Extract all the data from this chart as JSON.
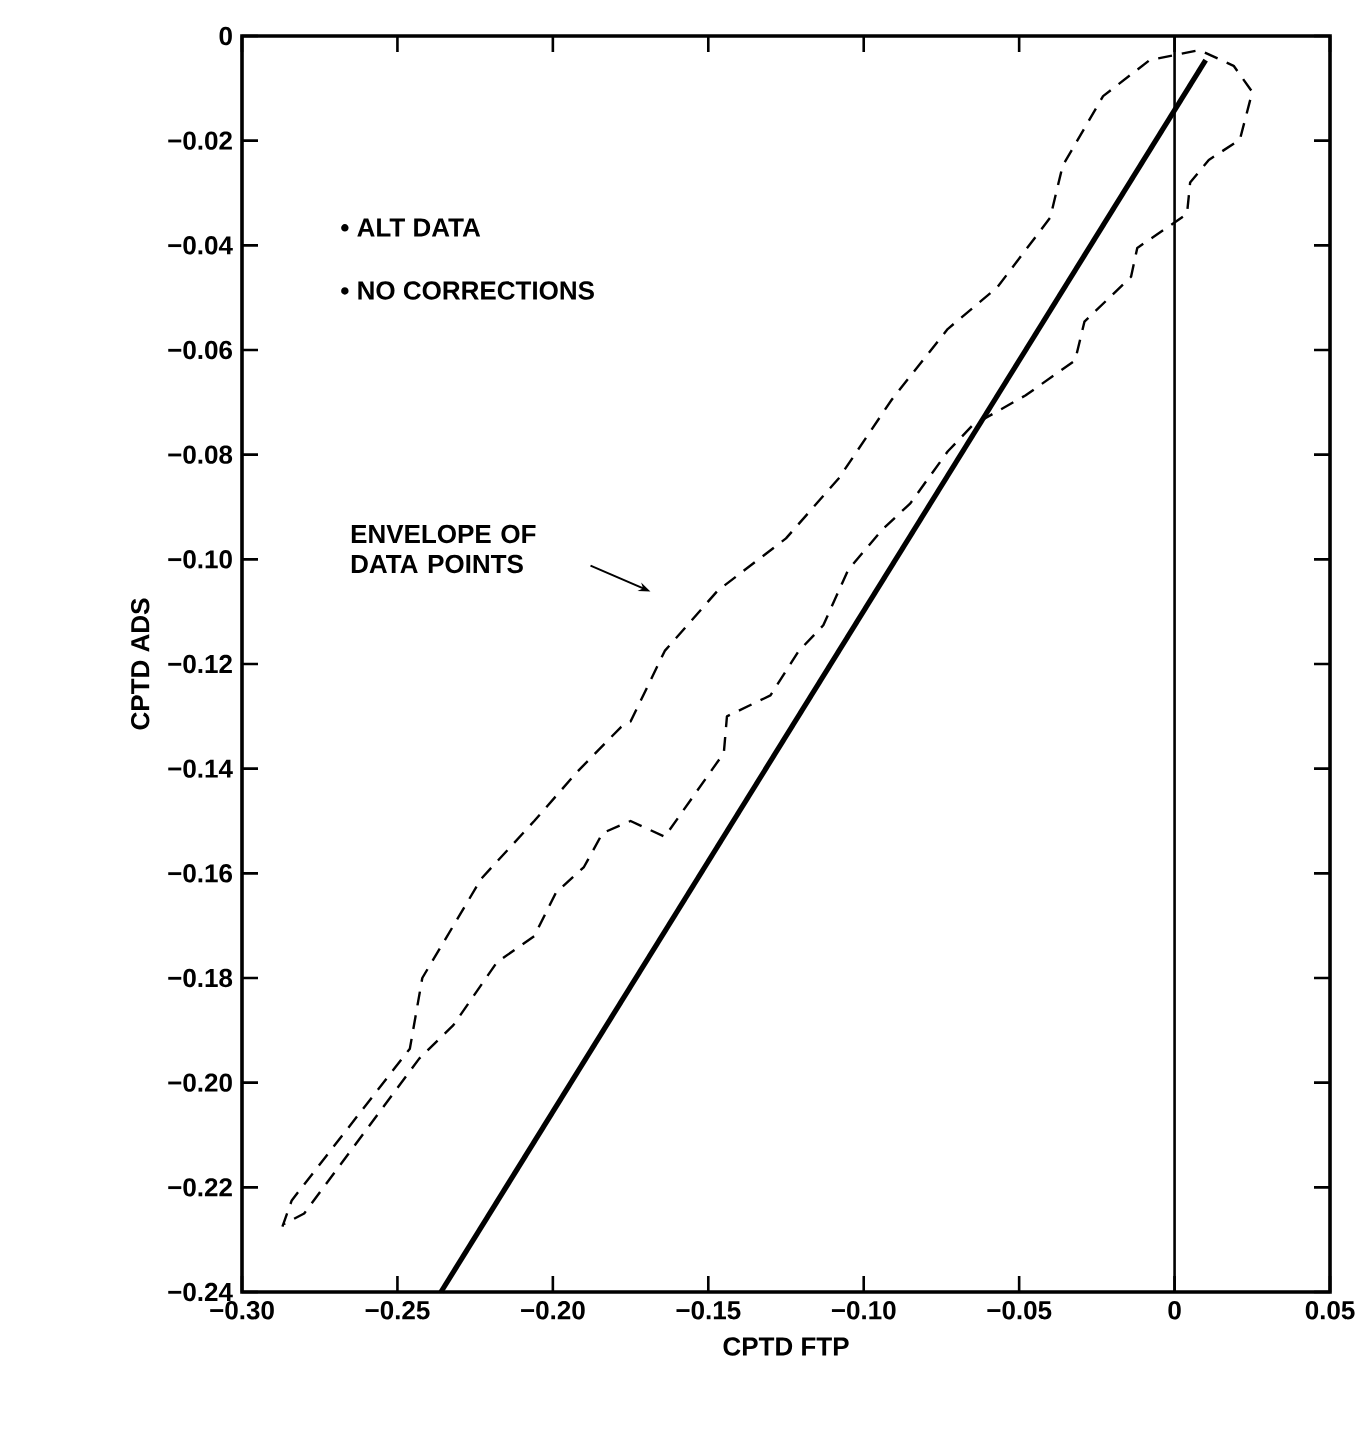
{
  "chart_data": {
    "type": "line",
    "xlabel": "CPTD FTP",
    "ylabel": "CPTD ADS",
    "xlim": [
      -0.3,
      0.05
    ],
    "ylim": [
      -0.24,
      0
    ],
    "xticks": [
      {
        "value": -0.3,
        "label": "−0.30"
      },
      {
        "value": -0.25,
        "label": "−0.25"
      },
      {
        "value": -0.2,
        "label": "−0.20"
      },
      {
        "value": -0.15,
        "label": "−0.15"
      },
      {
        "value": -0.1,
        "label": "−0.10"
      },
      {
        "value": -0.05,
        "label": "−0.05"
      },
      0,
      0.05
    ],
    "yticks": [
      {
        "value": -0.24,
        "label": "−0.24"
      },
      {
        "value": -0.22,
        "label": "−0.22"
      },
      {
        "value": -0.2,
        "label": "−0.20"
      },
      {
        "value": -0.18,
        "label": "−0.18"
      },
      {
        "value": -0.16,
        "label": "−0.16"
      },
      {
        "value": -0.14,
        "label": "−0.14"
      },
      {
        "value": -0.12,
        "label": "−0.12"
      },
      {
        "value": -0.1,
        "label": "−0.10"
      },
      {
        "value": -0.08,
        "label": "−0.08"
      },
      {
        "value": -0.06,
        "label": "−0.06"
      },
      {
        "value": -0.04,
        "label": "−0.04"
      },
      {
        "value": -0.02,
        "label": "−0.02"
      },
      0
    ],
    "series": [
      {
        "line_style": "dashed",
        "color": "#000000",
        "x": [
          -0.287,
          -0.284,
          -0.246,
          -0.242,
          -0.232,
          -0.223,
          -0.206,
          -0.192,
          -0.178,
          -0.175,
          -0.164,
          -0.147,
          -0.125,
          -0.108,
          -0.091,
          -0.073,
          -0.057,
          -0.04,
          -0.036,
          -0.023,
          -0.008,
          0.008,
          0.019,
          0.025,
          0.021,
          0.011,
          0.005,
          0.004,
          -0.012,
          -0.014,
          -0.029,
          -0.032,
          -0.048,
          -0.065,
          -0.073,
          -0.085,
          -0.094,
          -0.105,
          -0.113,
          -0.121,
          -0.13,
          -0.144,
          -0.145,
          -0.164,
          -0.175,
          -0.184,
          -0.19,
          -0.199,
          -0.206,
          -0.218,
          -0.232,
          -0.243,
          -0.255,
          -0.28,
          -0.2865
        ],
        "values": [
          -0.2275,
          -0.2225,
          -0.1935,
          -0.18,
          -0.17,
          -0.161,
          -0.15,
          -0.1405,
          -0.132,
          -0.131,
          -0.1175,
          -0.106,
          -0.096,
          -0.0845,
          -0.0695,
          -0.056,
          -0.048,
          -0.0347,
          -0.0248,
          -0.0115,
          -0.0046,
          -0.0027,
          -0.0057,
          -0.0107,
          -0.0198,
          -0.0237,
          -0.028,
          -0.034,
          -0.0405,
          -0.046,
          -0.0546,
          -0.062,
          -0.0687,
          -0.0744,
          -0.0794,
          -0.0893,
          -0.0943,
          -0.102,
          -0.1126,
          -0.1176,
          -0.126,
          -0.13,
          -0.137,
          -0.153,
          -0.15,
          -0.1523,
          -0.1588,
          -0.1637,
          -0.172,
          -0.177,
          -0.189,
          -0.1954,
          -0.205,
          -0.225,
          -0.227
        ]
      },
      {
        "line_style": "solid",
        "color": "#000000",
        "x": [
          -0.236,
          0.01
        ],
        "values": [
          -0.24,
          -0.0046
        ]
      }
    ],
    "ref_lines": [
      {
        "axis": "x",
        "value": 0,
        "color": "#000000"
      }
    ],
    "annotations": [
      "• ALT DATA",
      "• NO CORRECTIONS",
      "ENVELOPE OF DATA POINTS"
    ]
  }
}
